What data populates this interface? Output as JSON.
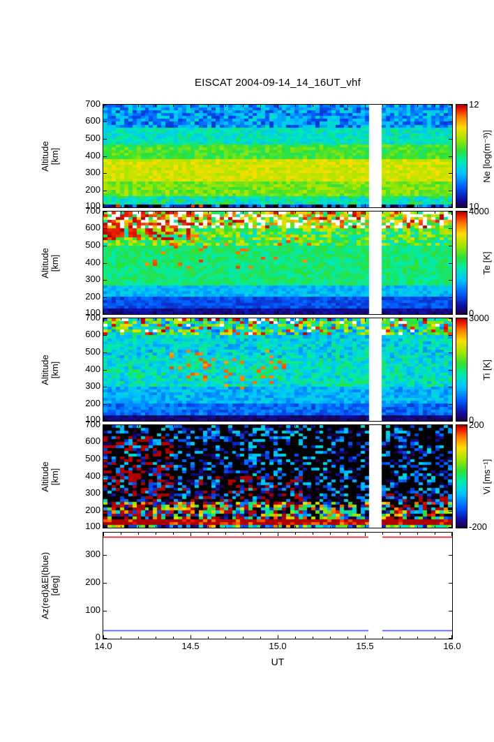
{
  "title": "EISCAT 2004-09-14_14_16UT_vhf",
  "x_axis": {
    "label": "UT",
    "tick_labels": [
      "14.0",
      "14.5",
      "15.0",
      "15.5",
      "16.0"
    ],
    "tick_values": [
      14.0,
      14.5,
      15.0,
      15.5,
      16.0
    ],
    "range": [
      14.0,
      16.0
    ]
  },
  "data_gap_ut": [
    15.52,
    15.6
  ],
  "colors": {
    "axis": "#000000",
    "background": "#ffffff",
    "azimuth_line": "#bb0011",
    "elevation_line": "#3a3aff"
  },
  "chart_data": [
    {
      "panel": "Ne",
      "type": "heatmap",
      "ylabel_lines": [
        "Altitude",
        "[km]"
      ],
      "y_range": [
        100,
        700
      ],
      "ytick_values": [
        100,
        200,
        300,
        400,
        500,
        600,
        700
      ],
      "ytick_labels": [
        "100",
        "200",
        "300",
        "400",
        "500",
        "600",
        "700"
      ],
      "colorbar": {
        "label": "Ne [log(m⁻³)]",
        "tick_labels": [
          "12",
          "10"
        ],
        "tick_values": [
          12,
          10
        ],
        "range": [
          10,
          12
        ]
      },
      "altitude_profile": [
        {
          "alt": [
            100,
            114
          ],
          "mean": 10.15,
          "noise": 0.55
        },
        {
          "alt": [
            114,
            160
          ],
          "mean": 10.9,
          "noise": 0.25
        },
        {
          "alt": [
            160,
            250
          ],
          "mean": 11.25,
          "noise": 0.15
        },
        {
          "alt": [
            250,
            380
          ],
          "mean": 11.45,
          "noise": 0.12
        },
        {
          "alt": [
            380,
            470
          ],
          "mean": 11.15,
          "noise": 0.15
        },
        {
          "alt": [
            470,
            570
          ],
          "mean": 10.85,
          "noise": 0.18
        },
        {
          "alt": [
            570,
            700
          ],
          "mean": 10.55,
          "noise": 0.28
        }
      ],
      "features": [
        {
          "t": [
            14.0,
            16.0
          ],
          "alt": [
            100,
            114
          ],
          "value": 11.85,
          "prob": 0.05
        }
      ]
    },
    {
      "panel": "Te",
      "type": "heatmap",
      "ylabel_lines": [
        "Altitude",
        "[km]"
      ],
      "y_range": [
        100,
        700
      ],
      "ytick_values": [
        100,
        200,
        300,
        400,
        500,
        600,
        700
      ],
      "ytick_labels": [
        "100",
        "200",
        "300",
        "400",
        "500",
        "600",
        "700"
      ],
      "colorbar": {
        "label": "Te [K]",
        "tick_labels": [
          "4000",
          "0"
        ],
        "tick_values": [
          4000,
          0
        ],
        "range": [
          0,
          4000
        ]
      },
      "altitude_profile": [
        {
          "alt": [
            100,
            140
          ],
          "mean": 250,
          "noise": 150
        },
        {
          "alt": [
            140,
            200
          ],
          "mean": 700,
          "noise": 200
        },
        {
          "alt": [
            200,
            260
          ],
          "mean": 1300,
          "noise": 250
        },
        {
          "alt": [
            260,
            500
          ],
          "mean": 2000,
          "noise": 250
        },
        {
          "alt": [
            500,
            600
          ],
          "mean": 2300,
          "noise": 700
        },
        {
          "alt": [
            600,
            700
          ],
          "mean": 2900,
          "noise": 1100,
          "missing": 0.28
        }
      ],
      "features": [
        {
          "t": [
            14.0,
            14.5
          ],
          "alt": [
            540,
            700
          ],
          "value": 3850,
          "prob": 0.5
        },
        {
          "t": [
            14.2,
            15.2
          ],
          "alt": [
            360,
            560
          ],
          "value": 3600,
          "prob": 0.08
        }
      ]
    },
    {
      "panel": "Ti",
      "type": "heatmap",
      "ylabel_lines": [
        "Altitude",
        "[km]"
      ],
      "y_range": [
        100,
        700
      ],
      "ytick_values": [
        100,
        200,
        300,
        400,
        500,
        600,
        700
      ],
      "ytick_labels": [
        "100",
        "200",
        "300",
        "400",
        "500",
        "600",
        "700"
      ],
      "colorbar": {
        "label": "Ti [K]",
        "tick_labels": [
          "3000",
          "0"
        ],
        "tick_values": [
          3000,
          0
        ],
        "range": [
          0,
          3000
        ]
      },
      "altitude_profile": [
        {
          "alt": [
            100,
            128
          ],
          "mean": 120,
          "noise": 120
        },
        {
          "alt": [
            128,
            200
          ],
          "mean": 650,
          "noise": 220
        },
        {
          "alt": [
            200,
            300
          ],
          "mean": 950,
          "noise": 260
        },
        {
          "alt": [
            300,
            460
          ],
          "mean": 1250,
          "noise": 350
        },
        {
          "alt": [
            460,
            600
          ],
          "mean": 1150,
          "noise": 380
        },
        {
          "alt": [
            600,
            700
          ],
          "mean": 1450,
          "noise": 850,
          "missing": 0.05
        }
      ],
      "features": [
        {
          "t": [
            14.35,
            15.05
          ],
          "alt": [
            280,
            520
          ],
          "value": 2650,
          "prob": 0.1
        },
        {
          "t": [
            14.0,
            16.0
          ],
          "alt": [
            600,
            700
          ],
          "value": 2900,
          "prob": 0.1
        }
      ]
    },
    {
      "panel": "Vi",
      "type": "heatmap",
      "ylabel_lines": [
        "Altitude",
        "[km]"
      ],
      "y_range": [
        100,
        700
      ],
      "ytick_values": [
        100,
        200,
        300,
        400,
        500,
        600,
        700
      ],
      "ytick_labels": [
        "100",
        "200",
        "300",
        "400",
        "500",
        "600",
        "700"
      ],
      "colorbar": {
        "label": "Vi [ms⁻¹]",
        "tick_labels": [
          "200",
          "-200"
        ],
        "tick_values": [
          200,
          -200
        ],
        "range": [
          -200,
          200
        ]
      },
      "altitude_profile": [
        {
          "alt": [
            100,
            112
          ],
          "mean": -40,
          "noise": 200
        },
        {
          "alt": [
            112,
            152
          ],
          "mean": 255,
          "noise": 110
        },
        {
          "alt": [
            152,
            250
          ],
          "mean": -60,
          "noise": 260
        },
        {
          "alt": [
            250,
            700
          ],
          "mean": -250,
          "noise": 210
        }
      ],
      "features": [
        {
          "t": [
            14.0,
            14.4
          ],
          "alt": [
            140,
            640
          ],
          "value": 260,
          "prob": 0.28
        },
        {
          "t": [
            14.45,
            15.15
          ],
          "alt": [
            150,
            400
          ],
          "value": 250,
          "prob": 0.2
        },
        {
          "t": [
            15.6,
            16.0
          ],
          "alt": [
            120,
            300
          ],
          "value": 240,
          "prob": 0.18
        }
      ]
    },
    {
      "panel": "AzEl",
      "type": "line",
      "ylabel_lines": [
        "Az(red)&El(blue)",
        "[deg]"
      ],
      "y_range": [
        0,
        380
      ],
      "ytick_values": [
        0,
        100,
        200,
        300
      ],
      "ytick_labels": [
        "0",
        "100",
        "200",
        "300"
      ],
      "series": [
        {
          "name": "Azimuth",
          "color": "#bb0011",
          "value_deg": 365
        },
        {
          "name": "Elevation",
          "color": "#3a3aff",
          "value_deg": 30
        }
      ]
    }
  ]
}
